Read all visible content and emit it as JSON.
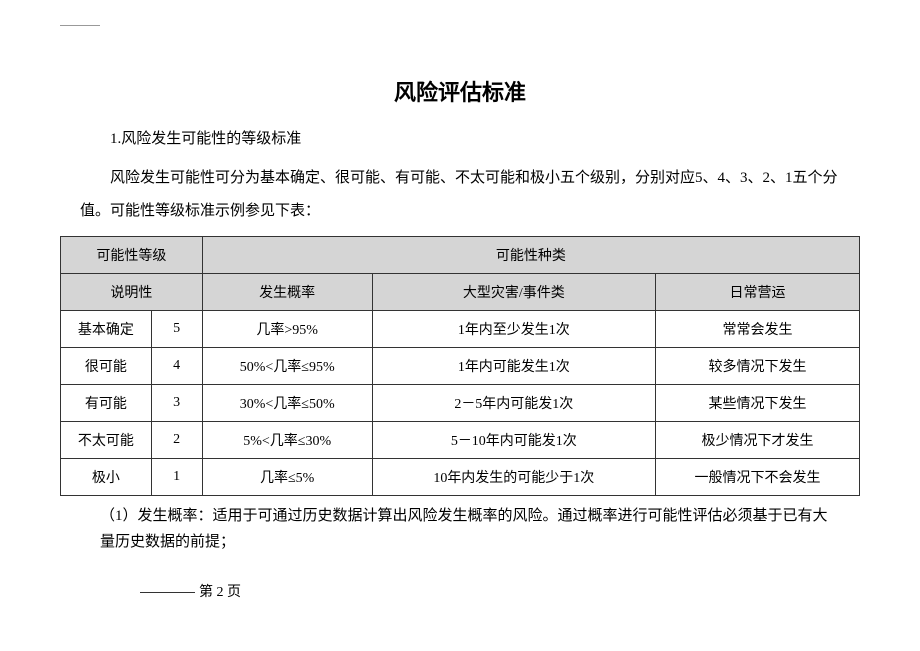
{
  "title": "风险评估标准",
  "section_heading": "1.风险发生可能性的等级标准",
  "intro_para": "风险发生可能性可分为基本确定、很可能、有可能、不太可能和极小五个级别，分别对应5、4、3、2、1五个分值。可能性等级标准示例参见下表：",
  "table": {
    "header1": {
      "col1": "可能性等级",
      "col2": "可能性种类"
    },
    "header2": {
      "col1": "说明性",
      "col2": "发生概率",
      "col3": "大型灾害/事件类",
      "col4": "日常营运"
    },
    "rows": [
      {
        "level": "基本确定",
        "score": "5",
        "prob": "几率>95%",
        "event": "1年内至少发生1次",
        "daily": "常常会发生"
      },
      {
        "level": "很可能",
        "score": "4",
        "prob": "50%<几率≤95%",
        "event": "1年内可能发生1次",
        "daily": "较多情况下发生"
      },
      {
        "level": "有可能",
        "score": "3",
        "prob": "30%<几率≤50%",
        "event": "2－5年内可能发1次",
        "daily": "某些情况下发生"
      },
      {
        "level": "不太可能",
        "score": "2",
        "prob": "5%<几率≤30%",
        "event": "5－10年内可能发1次",
        "daily": "极少情况下才发生"
      },
      {
        "level": "极小",
        "score": "1",
        "prob": "几率≤5%",
        "event": "10年内发生的可能少于1次",
        "daily": "一般情况下不会发生"
      }
    ]
  },
  "footnote": "（1）发生概率：适用于可通过历史数据计算出风险发生概率的风险。通过概率进行可能性评估必须基于已有大量历史数据的前提；",
  "page_number": "第 2 页",
  "colors": {
    "header_bg": "#d5d5d5",
    "border": "#333333",
    "text": "#000000",
    "background": "#ffffff"
  }
}
